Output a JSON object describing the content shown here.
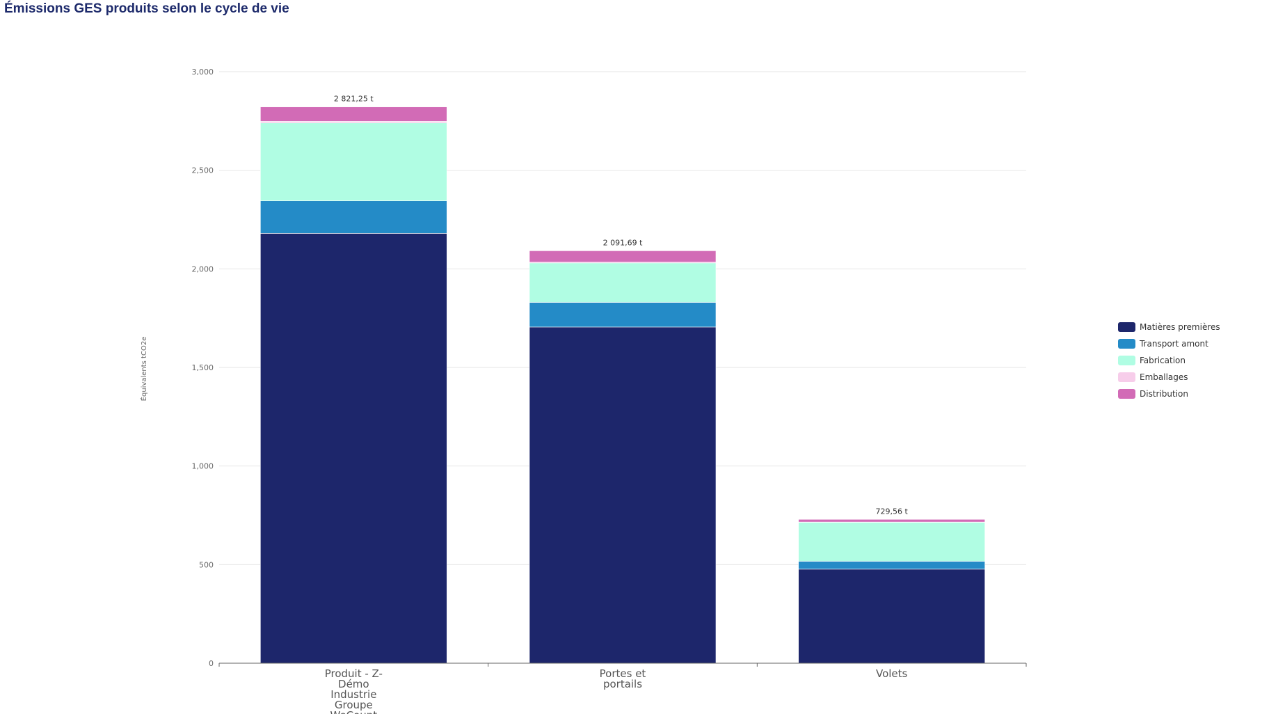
{
  "chart_data": {
    "type": "bar",
    "stacked": true,
    "title": "Émissions GES produits selon le cycle de vie",
    "xlabel": "",
    "ylabel": "Équivalents tCO2e",
    "ylim": [
      0,
      3000
    ],
    "yticks": [
      0,
      500,
      1000,
      1500,
      2000,
      2500,
      3000
    ],
    "ytick_labels": [
      "0",
      "500",
      "1,000",
      "1,500",
      "2,000",
      "2,500",
      "3,000"
    ],
    "categories": [
      [
        "Produit - Z-",
        "Démo",
        "Industrie",
        "Groupe",
        "WeCount"
      ],
      [
        "Portes et",
        "portails"
      ],
      [
        "Volets"
      ]
    ],
    "totals": [
      "2 821,25 t",
      "2 091,69 t",
      "729,56 t"
    ],
    "series": [
      {
        "name": "Matières premières",
        "color": "#1d266b",
        "values": [
          2180,
          1705,
          477
        ]
      },
      {
        "name": "Transport amont",
        "color": "#248bc7",
        "values": [
          165,
          125,
          40
        ]
      },
      {
        "name": "Fabrication",
        "color": "#b0fde3",
        "values": [
          395,
          200,
          197
        ]
      },
      {
        "name": "Emballages",
        "color": "#f7cdea",
        "values": [
          8,
          4,
          2
        ]
      },
      {
        "name": "Distribution",
        "color": "#d26bb6",
        "values": [
          73.25,
          57.69,
          13.56
        ]
      }
    ],
    "legend_position": "right",
    "grid": true
  }
}
